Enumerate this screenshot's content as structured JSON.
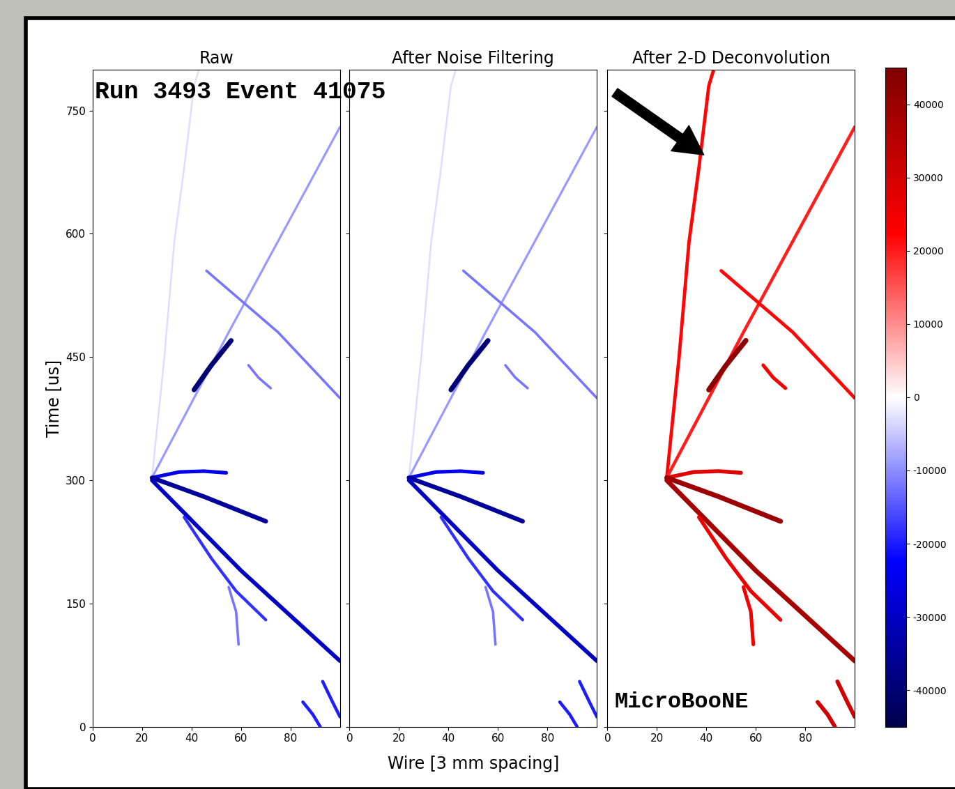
{
  "chart_data": {
    "type": "event_display",
    "panels": [
      {
        "title": "Raw"
      },
      {
        "title": "After Noise Filtering"
      },
      {
        "title": "After 2-D Deconvolution"
      }
    ],
    "xlabel": "Wire [3 mm spacing]",
    "ylabel": "Time [us]",
    "xlim": [
      0,
      100
    ],
    "xticks": [
      0,
      20,
      40,
      60,
      80
    ],
    "ylim": [
      0,
      800
    ],
    "yticks": [
      0,
      150,
      300,
      450,
      600,
      750
    ],
    "tick_labels": "y",
    "color": "seismic",
    "colorbar": {
      "range": [
        -45000,
        45000
      ],
      "ticks": [
        -40000,
        -30000,
        -20000,
        -10000,
        0,
        10000,
        20000,
        30000,
        40000
      ]
    },
    "annotations": [
      "Run 3493 Event 41075",
      "MicroBooNE"
    ],
    "tracks": [
      {
        "points": [
          [
            24,
            303
          ],
          [
            29,
            450
          ],
          [
            33,
            590
          ],
          [
            37,
            680
          ],
          [
            41,
            780
          ],
          [
            43,
            800
          ]
        ],
        "values": [
          -3000,
          -3000,
          22000
        ]
      },
      {
        "points": [
          [
            24,
            303
          ],
          [
            55,
            480
          ],
          [
            100,
            730
          ]
        ],
        "values": [
          -9000,
          -9000,
          20000
        ]
      },
      {
        "points": [
          [
            46,
            555
          ],
          [
            75,
            480
          ],
          [
            100,
            400
          ]
        ],
        "values": [
          -12000,
          -12000,
          22000
        ]
      },
      {
        "points": [
          [
            24,
            303
          ],
          [
            35,
            310
          ],
          [
            45,
            311
          ],
          [
            54,
            309
          ]
        ],
        "values": [
          -25000,
          -25000,
          28000
        ]
      },
      {
        "points": [
          [
            24,
            303
          ],
          [
            45,
            280
          ],
          [
            70,
            250
          ]
        ],
        "values": [
          -35000,
          -35000,
          40000
        ]
      },
      {
        "points": [
          [
            24,
            300
          ],
          [
            60,
            190
          ],
          [
            100,
            80
          ]
        ],
        "values": [
          -30000,
          -30000,
          38000
        ]
      },
      {
        "points": [
          [
            37,
            255
          ],
          [
            48,
            205
          ],
          [
            58,
            165
          ],
          [
            70,
            130
          ]
        ],
        "values": [
          -18000,
          -18000,
          26000
        ]
      },
      {
        "points": [
          [
            55,
            170
          ],
          [
            58,
            140
          ],
          [
            59,
            100
          ]
        ],
        "values": [
          -12000,
          -12000,
          24000
        ]
      },
      {
        "points": [
          [
            41,
            410
          ],
          [
            48,
            440
          ],
          [
            56,
            470
          ]
        ],
        "values": [
          -40000,
          -40000,
          42000
        ]
      },
      {
        "points": [
          [
            63,
            440
          ],
          [
            67,
            425
          ],
          [
            72,
            412
          ]
        ],
        "values": [
          -12000,
          -12000,
          24000
        ]
      },
      {
        "points": [
          [
            85,
            30
          ],
          [
            89,
            15
          ],
          [
            92,
            0
          ]
        ],
        "values": [
          -20000,
          -20000,
          30000
        ]
      },
      {
        "points": [
          [
            93,
            55
          ],
          [
            97,
            30
          ],
          [
            100,
            12
          ]
        ],
        "values": [
          -20000,
          -20000,
          30000
        ]
      }
    ]
  }
}
